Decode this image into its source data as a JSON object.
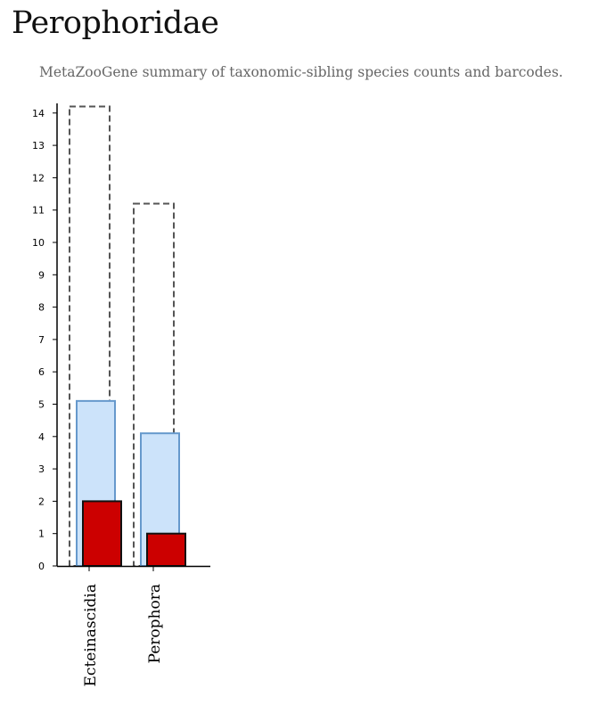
{
  "page": {
    "title": "Perophoridae",
    "subtitle": "MetaZooGene summary of taxonomic-sibling species counts and barcodes."
  },
  "colors": {
    "total_outline": "#555555",
    "species_fill": "#cce3fa",
    "species_stroke": "#6699cc",
    "barcode_fill": "#cc0000",
    "barcode_stroke": "#111111",
    "axis": "#000000"
  },
  "chart_data": {
    "type": "bar",
    "categories": [
      "Ecteinascidia",
      "Perophora"
    ],
    "series": [
      {
        "values": [
          14.2,
          11.2
        ]
      },
      {
        "values": [
          5.1,
          4.1
        ]
      },
      {
        "values": [
          2,
          1
        ]
      }
    ],
    "ylim": [
      0,
      14
    ],
    "yticks": [
      0,
      1,
      2,
      3,
      4,
      5,
      6,
      7,
      8,
      9,
      10,
      11,
      12,
      13,
      14
    ],
    "grid": false
  }
}
